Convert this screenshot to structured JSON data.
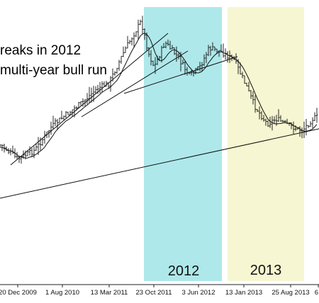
{
  "chart_data": {
    "type": "ohlc",
    "title": "",
    "annotations": [
      "reaks in 2012",
      "multi-year bull run"
    ],
    "highlights": [
      {
        "label": "2012",
        "color": "#aee8ea"
      },
      {
        "label": "2013",
        "color": "#f6f6d2"
      }
    ],
    "x_ticks": [
      "20 Dec 2009",
      "1 Aug 2010",
      "13 Mar 2011",
      "23 Oct 2011",
      "3 Jun 2012",
      "13 Jan 2013",
      "25 Aug 2013",
      "6"
    ],
    "grid": false,
    "legend": "none",
    "price_path": [
      [
        "2009-10-01",
        205
      ],
      [
        "2009-12-20",
        225
      ],
      [
        "2010-03-15",
        212
      ],
      [
        "2010-06-01",
        180
      ],
      [
        "2010-08-01",
        165
      ],
      [
        "2010-11-01",
        145
      ],
      [
        "2011-01-15",
        125
      ],
      [
        "2011-03-13",
        118
      ],
      [
        "2011-06-01",
        70
      ],
      [
        "2011-08-20",
        30
      ],
      [
        "2011-09-25",
        75
      ],
      [
        "2011-10-23",
        95
      ],
      [
        "2011-12-15",
        60
      ],
      [
        "2012-02-15",
        80
      ],
      [
        "2012-04-15",
        108
      ],
      [
        "2012-06-03",
        95
      ],
      [
        "2012-07-20",
        68
      ],
      [
        "2012-09-10",
        72
      ],
      [
        "2012-11-20",
        85
      ],
      [
        "2013-01-13",
        118
      ],
      [
        "2013-03-01",
        150
      ],
      [
        "2013-05-01",
        175
      ],
      [
        "2013-06-15",
        168
      ],
      [
        "2013-08-25",
        178
      ],
      [
        "2013-10-20",
        185
      ],
      [
        "2013-12-10",
        168
      ],
      [
        "2014-01-31",
        162
      ]
    ]
  }
}
